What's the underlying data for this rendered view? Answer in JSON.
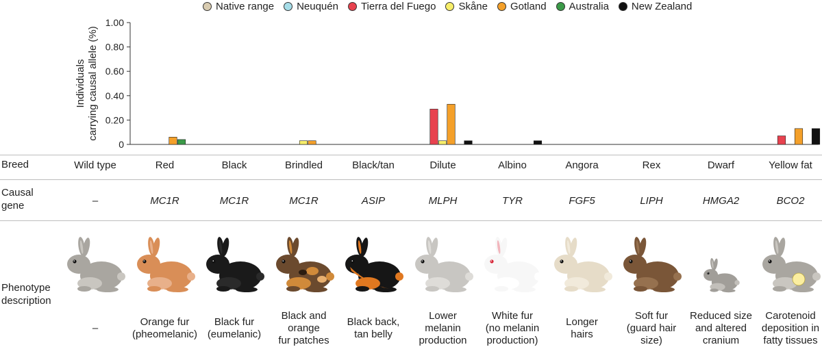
{
  "legend": [
    {
      "name": "Native range",
      "color": "#d8cbb0"
    },
    {
      "name": "Neuquén",
      "color": "#a6dde8"
    },
    {
      "name": "Tierra del Fuego",
      "color": "#e8424f"
    },
    {
      "name": "Skåne",
      "color": "#f7ee6a"
    },
    {
      "name": "Gotland",
      "color": "#f4a02a"
    },
    {
      "name": "Australia",
      "color": "#3b9a48"
    },
    {
      "name": "New Zealand",
      "color": "#111111"
    }
  ],
  "row_labels": {
    "breed": "Breed",
    "gene_line1": "Causal",
    "gene_line2": "gene",
    "pheno_line1": "Phenotype",
    "pheno_line2": "description"
  },
  "columns": [
    {
      "breed": "Wild type",
      "gene": "–",
      "desc": [
        "–"
      ]
    },
    {
      "breed": "Red",
      "gene": "MC1R",
      "desc": [
        "Orange fur",
        "(pheomelanic)"
      ]
    },
    {
      "breed": "Black",
      "gene": "MC1R",
      "desc": [
        "Black fur",
        "(eumelanic)"
      ]
    },
    {
      "breed": "Brindled",
      "gene": "MC1R",
      "desc": [
        "Black and",
        "orange",
        "fur patches"
      ]
    },
    {
      "breed": "Black/tan",
      "gene": "ASIP",
      "desc": [
        "Black back,",
        "tan belly"
      ]
    },
    {
      "breed": "Dilute",
      "gene": "MLPH",
      "desc": [
        "Lower",
        "melanin",
        "production"
      ]
    },
    {
      "breed": "Albino",
      "gene": "TYR",
      "desc": [
        "White fur",
        "(no melanin",
        "production)"
      ]
    },
    {
      "breed": "Angora",
      "gene": "FGF5",
      "desc": [
        "Longer",
        "hairs"
      ]
    },
    {
      "breed": "Rex",
      "gene": "LIPH",
      "desc": [
        "Soft fur",
        "(guard hair",
        "size)"
      ]
    },
    {
      "breed": "Dwarf",
      "gene": "HMGA2",
      "desc": [
        "Reduced size",
        "and altered",
        "cranium"
      ]
    },
    {
      "breed": "Yellow fat",
      "gene": "BCO2",
      "desc": [
        "Carotenoid",
        "deposition in",
        "fatty tissues"
      ]
    }
  ],
  "rabbit_colors": [
    {
      "body": "#a9a6a0",
      "belly": "#c9c6c0"
    },
    {
      "body": "#d98e57",
      "belly": "#e8b08a"
    },
    {
      "body": "#1a1a1a",
      "belly": "#2a2a2a"
    },
    {
      "body": "#6b4a2e",
      "belly": "#d08a3a"
    },
    {
      "body": "#161616",
      "belly": "#e07820"
    },
    {
      "body": "#c8c6c2",
      "belly": "#dedcd8"
    },
    {
      "body": "#f7f7f7",
      "belly": "#ffffff"
    },
    {
      "body": "#e6dcc8",
      "belly": "#f1eadb"
    },
    {
      "body": "#7a5638",
      "belly": "#96714f"
    },
    {
      "body": "#a19e99",
      "belly": "#c2bfba"
    },
    {
      "body": "#a9a6a0",
      "belly": "#c9c6c0"
    }
  ],
  "chart_data": {
    "type": "bar",
    "ylabel": "Individuals carrying causal allele (%)",
    "ylabel_line1": "Individuals",
    "ylabel_line2": "carrying causal allele (%)",
    "ylim": [
      0,
      1.0
    ],
    "yticks": [
      "0",
      "0.20",
      "0.40",
      "0.60",
      "0.80",
      "1.00"
    ],
    "ytick_values": [
      0,
      0.2,
      0.4,
      0.6,
      0.8,
      1.0
    ],
    "categories": [
      "Wild type",
      "Red",
      "Black",
      "Brindled",
      "Black/tan",
      "Dilute",
      "Albino",
      "Angora",
      "Rex",
      "Dwarf",
      "Yellow fat"
    ],
    "series": [
      {
        "name": "Native range",
        "color": "#d8cbb0",
        "values": [
          null,
          0,
          0,
          0,
          0,
          0,
          0,
          0,
          0,
          0,
          0
        ]
      },
      {
        "name": "Neuquén",
        "color": "#a6dde8",
        "values": [
          null,
          0,
          0,
          0,
          0,
          0,
          0,
          0,
          0,
          0,
          0
        ]
      },
      {
        "name": "Tierra del Fuego",
        "color": "#e8424f",
        "values": [
          null,
          0,
          0,
          0,
          0,
          0.29,
          0,
          0,
          0,
          0,
          0.07
        ]
      },
      {
        "name": "Skåne",
        "color": "#f7ee6a",
        "values": [
          null,
          0,
          0,
          0.03,
          0,
          0.03,
          0,
          0,
          0,
          0,
          0
        ]
      },
      {
        "name": "Gotland",
        "color": "#f4a02a",
        "values": [
          null,
          0.06,
          0,
          0.03,
          0,
          0.33,
          0,
          0,
          0,
          0,
          0.13
        ]
      },
      {
        "name": "Australia",
        "color": "#3b9a48",
        "values": [
          null,
          0.04,
          0,
          0,
          0,
          0,
          0,
          0,
          0,
          0,
          0
        ]
      },
      {
        "name": "New Zealand",
        "color": "#111111",
        "values": [
          null,
          0,
          0,
          0,
          0,
          0.03,
          0.03,
          0,
          0,
          0,
          0.13
        ]
      }
    ]
  }
}
